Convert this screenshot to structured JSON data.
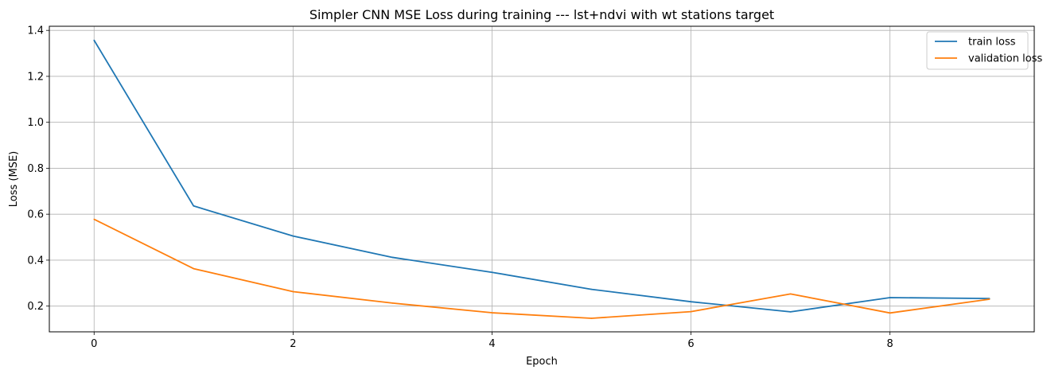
{
  "chart_data": {
    "type": "line",
    "title": "Simpler CNN MSE Loss during training --- lst+ndvi with wt stations target",
    "xlabel": "Epoch",
    "ylabel": "Loss (MSE)",
    "x": [
      0,
      1,
      2,
      3,
      4,
      5,
      6,
      7,
      8,
      9
    ],
    "xlim": [
      -0.45,
      9.45
    ],
    "ylim": [
      0.088,
      1.418
    ],
    "xticks": [
      0,
      2,
      4,
      6,
      8
    ],
    "xtick_labels": [
      "0",
      "2",
      "4",
      "6",
      "8"
    ],
    "yticks": [
      0.2,
      0.4,
      0.6,
      0.8,
      1.0,
      1.2,
      1.4
    ],
    "ytick_labels": [
      "0.2",
      "0.4",
      "0.6",
      "0.8",
      "1.0",
      "1.2",
      "1.4"
    ],
    "grid": true,
    "legend_position": "top-right",
    "series": [
      {
        "name": "train loss",
        "color": "#1f77b4",
        "values": [
          1.357,
          0.636,
          0.505,
          0.412,
          0.347,
          0.273,
          0.219,
          0.175,
          0.237,
          0.233
        ]
      },
      {
        "name": "validation loss",
        "color": "#ff7f0e",
        "values": [
          0.578,
          0.363,
          0.263,
          0.213,
          0.171,
          0.147,
          0.176,
          0.253,
          0.17,
          0.23
        ]
      }
    ]
  }
}
